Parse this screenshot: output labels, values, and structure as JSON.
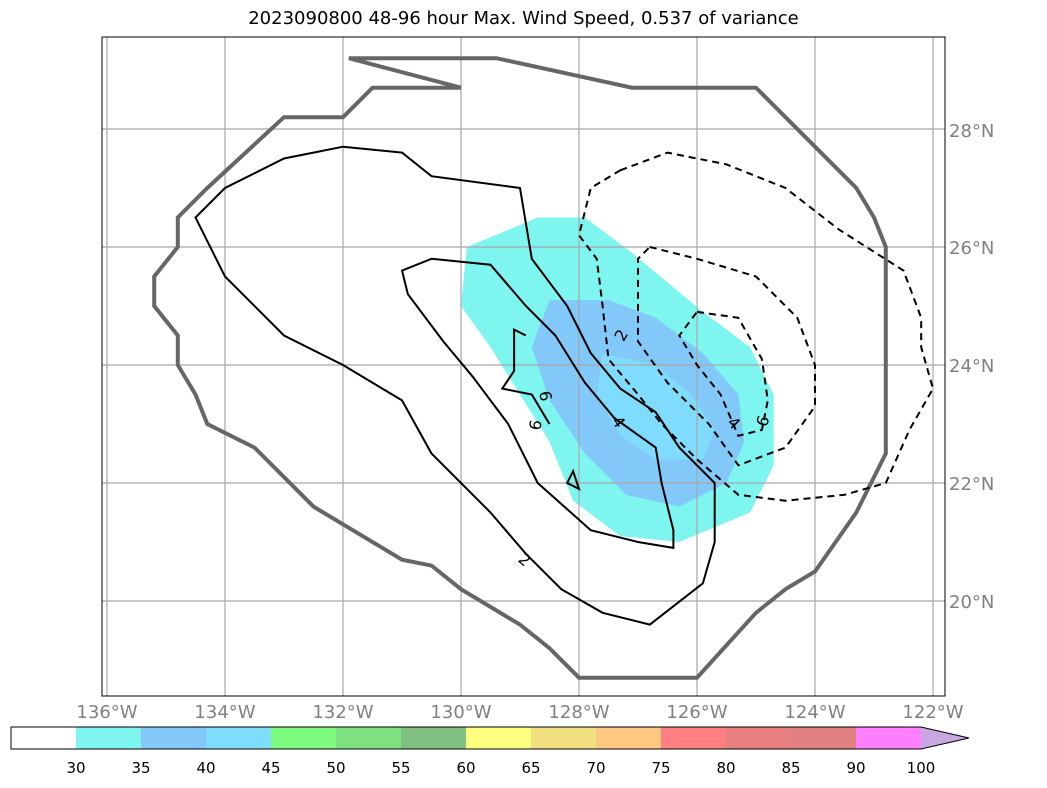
{
  "title": "2023090800 48-96 hour Max. Wind Speed, 0.537 of variance",
  "map": {
    "lon_range": [
      -136.1,
      -121.8
    ],
    "lat_range": [
      18.5,
      29.7
    ],
    "lon_ticks": [
      -136,
      -134,
      -132,
      -130,
      -128,
      -126,
      -124,
      -122
    ],
    "lat_ticks": [
      20,
      22,
      24,
      26,
      28
    ],
    "lon_labels": [
      "136°W",
      "134°W",
      "132°W",
      "130°W",
      "128°W",
      "126°W",
      "124°W",
      "122°W"
    ],
    "lat_labels": [
      "20°N",
      "22°N",
      "24°N",
      "26°N",
      "28°N"
    ],
    "grid": true
  },
  "colorbar": {
    "levels": [
      "30",
      "35",
      "40",
      "45",
      "50",
      "55",
      "60",
      "65",
      "70",
      "75",
      "80",
      "85",
      "90",
      "100"
    ],
    "colors": [
      "#7ff5f0",
      "#82c8f8",
      "#7fdcfc",
      "#7ffb7f",
      "#7fe07f",
      "#80c080",
      "#ffff7f",
      "#f0e080",
      "#ffc880",
      "#ff8080",
      "#e88080",
      "#e08080",
      "#ff80ff",
      "#c8a8e0"
    ],
    "below_color": "#ffffff",
    "extend": "max"
  },
  "contour_labels": [
    "2",
    "2",
    "4",
    "4",
    "6",
    "6",
    "6"
  ],
  "shading": {
    "band_30_35": [
      [
        -128.7,
        26.5
      ],
      [
        -127.9,
        26.5
      ],
      [
        -127.1,
        25.9
      ],
      [
        -125.9,
        24.9
      ],
      [
        -125.1,
        24.3
      ],
      [
        -124.7,
        23.5
      ],
      [
        -124.7,
        22.3
      ],
      [
        -125.1,
        21.5
      ],
      [
        -126.3,
        21.0
      ],
      [
        -127.3,
        21.1
      ],
      [
        -128.1,
        21.7
      ],
      [
        -128.5,
        22.7
      ],
      [
        -129.0,
        23.5
      ],
      [
        -129.5,
        24.3
      ],
      [
        -130.0,
        25.0
      ],
      [
        -129.9,
        26.0
      ]
    ],
    "band_35_40": [
      [
        -128.5,
        25.1
      ],
      [
        -127.5,
        25.1
      ],
      [
        -126.7,
        24.8
      ],
      [
        -125.9,
        24.2
      ],
      [
        -125.3,
        23.5
      ],
      [
        -125.2,
        22.7
      ],
      [
        -125.5,
        22.0
      ],
      [
        -126.3,
        21.6
      ],
      [
        -127.2,
        21.8
      ],
      [
        -127.9,
        22.5
      ],
      [
        -128.5,
        23.4
      ],
      [
        -128.8,
        24.3
      ]
    ],
    "band_40_45": [
      [
        -127.6,
        24.2
      ],
      [
        -126.7,
        24.0
      ],
      [
        -126.1,
        23.5
      ],
      [
        -125.7,
        22.9
      ],
      [
        -125.9,
        22.4
      ],
      [
        -126.7,
        22.4
      ],
      [
        -127.3,
        22.8
      ],
      [
        -127.7,
        23.5
      ]
    ]
  },
  "contours": {
    "outer_boundary": [
      [
        -131.9,
        29.2
      ],
      [
        -129.4,
        29.2
      ],
      [
        -127.1,
        28.7
      ],
      [
        -125.0,
        28.7
      ],
      [
        -124.5,
        28.2
      ],
      [
        -124.0,
        27.7
      ],
      [
        -123.3,
        27.0
      ],
      [
        -123.0,
        26.5
      ],
      [
        -122.8,
        26.0
      ],
      [
        -122.8,
        24.0
      ],
      [
        -122.8,
        22.5
      ],
      [
        -123.3,
        21.5
      ],
      [
        -124.0,
        20.5
      ],
      [
        -124.5,
        20.2
      ],
      [
        -125.0,
        19.8
      ],
      [
        -126.0,
        18.7
      ],
      [
        -128.0,
        18.7
      ],
      [
        -128.5,
        19.2
      ],
      [
        -129.0,
        19.6
      ],
      [
        -130.0,
        20.2
      ],
      [
        -130.5,
        20.6
      ],
      [
        -131.0,
        20.7
      ],
      [
        -132.0,
        21.3
      ],
      [
        -132.5,
        21.6
      ],
      [
        -133.5,
        22.6
      ],
      [
        -134.3,
        23.0
      ],
      [
        -134.5,
        23.5
      ],
      [
        -134.8,
        24.0
      ],
      [
        -134.8,
        24.5
      ],
      [
        -135.2,
        25.0
      ],
      [
        -135.2,
        25.5
      ],
      [
        -134.8,
        26.0
      ],
      [
        -134.8,
        26.5
      ],
      [
        -134.3,
        27.0
      ],
      [
        -133.0,
        28.2
      ],
      [
        -132.0,
        28.2
      ],
      [
        -131.5,
        28.7
      ],
      [
        -130.0,
        28.7
      ]
    ],
    "solid_2_large": [
      [
        -129.0,
        27.0
      ],
      [
        -130.5,
        27.2
      ],
      [
        -131.0,
        27.6
      ],
      [
        -132.0,
        27.7
      ],
      [
        -132.5,
        27.6
      ],
      [
        -133.0,
        27.5
      ],
      [
        -134.0,
        27.0
      ],
      [
        -134.5,
        26.5
      ],
      [
        -134.0,
        25.5
      ],
      [
        -133.0,
        24.5
      ],
      [
        -132.0,
        24.0
      ],
      [
        -131.0,
        23.4
      ],
      [
        -130.5,
        22.5
      ],
      [
        -129.5,
        21.5
      ],
      [
        -128.9,
        20.8
      ],
      [
        -128.3,
        20.2
      ],
      [
        -127.6,
        19.8
      ],
      [
        -126.8,
        19.6
      ],
      [
        -125.9,
        20.3
      ],
      [
        -125.7,
        21.0
      ],
      [
        -125.7,
        22.0
      ],
      [
        -126.3,
        22.6
      ],
      [
        -126.7,
        23.2
      ],
      [
        -127.3,
        23.6
      ],
      [
        -127.8,
        24.2
      ],
      [
        -128.2,
        25.0
      ],
      [
        -128.8,
        25.8
      ]
    ],
    "solid_4_inner": [
      [
        -130.5,
        25.8
      ],
      [
        -131.0,
        25.6
      ],
      [
        -130.9,
        25.2
      ],
      [
        -130.3,
        24.4
      ],
      [
        -129.8,
        23.8
      ],
      [
        -129.2,
        23.0
      ],
      [
        -128.7,
        22.0
      ],
      [
        -127.8,
        21.2
      ],
      [
        -127.0,
        21.0
      ],
      [
        -126.4,
        20.9
      ],
      [
        -126.4,
        21.2
      ],
      [
        -126.6,
        22.0
      ],
      [
        -126.7,
        22.6
      ],
      [
        -127.4,
        23.1
      ],
      [
        -127.9,
        23.7
      ],
      [
        -128.4,
        24.5
      ],
      [
        -128.9,
        25.0
      ],
      [
        -129.5,
        25.7
      ]
    ],
    "solid_6_small": [
      [
        -128.9,
        24.5
      ],
      [
        -129.1,
        24.6
      ],
      [
        -129.1,
        23.9
      ],
      [
        -129.3,
        23.6
      ],
      [
        -128.8,
        23.5
      ],
      [
        -128.5,
        23.0
      ]
    ],
    "solid_6_dot": [
      [
        -128.1,
        22.2
      ],
      [
        -128.2,
        22.0
      ],
      [
        -128.0,
        21.9
      ]
    ],
    "dashed_2_outer": [
      [
        -127.3,
        27.3
      ],
      [
        -126.5,
        27.6
      ],
      [
        -125.5,
        27.4
      ],
      [
        -124.5,
        27.0
      ],
      [
        -123.6,
        26.3
      ],
      [
        -122.5,
        25.6
      ],
      [
        -122.2,
        24.8
      ],
      [
        -122.2,
        24.3
      ],
      [
        -122.0,
        23.6
      ],
      [
        -122.4,
        22.9
      ],
      [
        -122.8,
        22.0
      ],
      [
        -123.5,
        21.8
      ],
      [
        -124.5,
        21.7
      ],
      [
        -125.3,
        21.8
      ],
      [
        -126.0,
        22.4
      ],
      [
        -126.6,
        23.0
      ],
      [
        -127.0,
        23.5
      ],
      [
        -127.5,
        24.1
      ],
      [
        -127.6,
        25.0
      ],
      [
        -127.7,
        25.8
      ],
      [
        -128.0,
        26.2
      ],
      [
        -127.8,
        27.0
      ]
    ],
    "dashed_4": [
      [
        -126.8,
        26.0
      ],
      [
        -126.0,
        25.8
      ],
      [
        -125.0,
        25.5
      ],
      [
        -124.3,
        24.8
      ],
      [
        -124.0,
        24.0
      ],
      [
        -124.0,
        23.3
      ],
      [
        -124.5,
        22.6
      ],
      [
        -125.3,
        22.3
      ],
      [
        -125.8,
        23.0
      ],
      [
        -126.5,
        23.7
      ],
      [
        -127.0,
        24.4
      ],
      [
        -127.0,
        25.0
      ],
      [
        -127.0,
        25.8
      ]
    ],
    "dashed_6": [
      [
        -126.0,
        24.9
      ],
      [
        -125.3,
        24.8
      ],
      [
        -124.9,
        24.1
      ],
      [
        -124.8,
        23.4
      ],
      [
        -124.9,
        22.9
      ],
      [
        -125.3,
        22.8
      ],
      [
        -125.6,
        23.5
      ],
      [
        -126.0,
        24.0
      ],
      [
        -126.3,
        24.5
      ]
    ]
  }
}
